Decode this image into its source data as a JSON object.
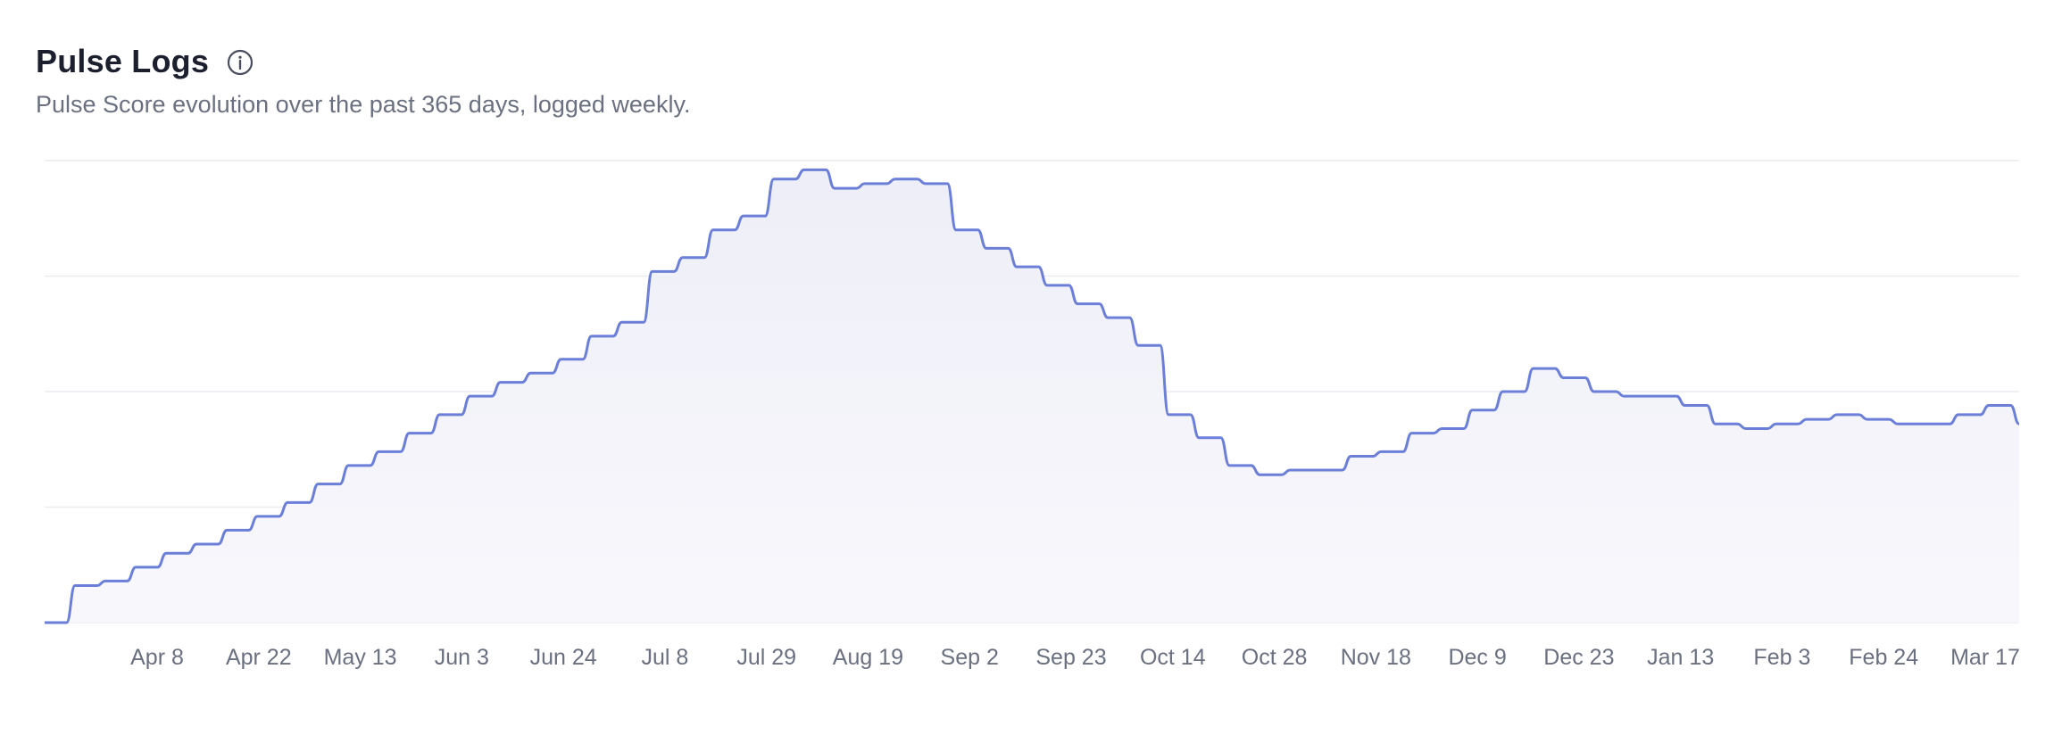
{
  "header": {
    "title": "Pulse Logs",
    "subtitle": "Pulse Score evolution over the past 365 days, logged weekly.",
    "info_icon": "info-circle-icon"
  },
  "colors": {
    "line": "#6b7fd8",
    "area_top": "#eeeef8",
    "grid": "#ececf0",
    "text_muted": "#6b7080"
  },
  "chart_data": {
    "type": "area",
    "title": "",
    "xlabel": "",
    "ylabel": "",
    "ylim": [
      0,
      100
    ],
    "grid": true,
    "x_tick_labels": [
      "Apr 8",
      "Apr 22",
      "May 13",
      "Jun 3",
      "Jun 24",
      "Jul 8",
      "Jul 29",
      "Aug 19",
      "Sep 2",
      "Sep 23",
      "Oct 14",
      "Oct 28",
      "Nov 18",
      "Dec 9",
      "Dec 23",
      "Jan 13",
      "Feb 3",
      "Feb 24",
      "Mar 17"
    ],
    "series": [
      {
        "values": [
          0,
          8,
          9,
          12,
          15,
          17,
          20,
          23,
          26,
          30,
          34,
          37,
          41,
          45,
          49,
          52,
          54,
          57,
          62,
          65,
          76,
          79,
          85,
          88,
          96,
          98,
          94,
          95,
          96,
          95,
          85,
          81,
          77,
          73,
          69,
          66,
          60,
          45,
          40,
          34,
          32,
          33,
          33,
          36,
          37,
          41,
          42,
          46,
          50,
          55,
          53,
          50,
          49,
          49,
          47,
          43,
          42,
          43,
          44,
          45,
          44,
          43,
          43,
          45,
          47,
          43
        ]
      }
    ]
  }
}
